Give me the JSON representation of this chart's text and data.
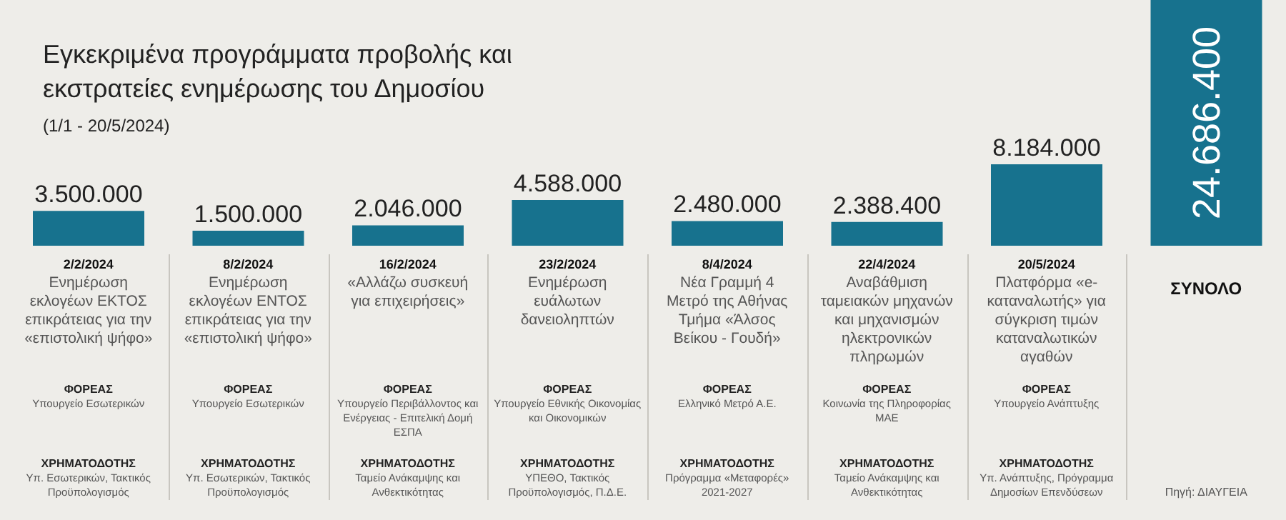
{
  "chart_data": {
    "type": "bar",
    "title": "Εγκεκριμένα προγράμματα προβολής και εκστρατείες ενημέρωσης του Δημοσίου",
    "subtitle": "(1/1 - 20/5/2024)",
    "categories": [
      "2/2/2024",
      "8/2/2024",
      "16/2/2024",
      "23/2/2024",
      "8/4/2024",
      "22/4/2024",
      "20/5/2024",
      "ΣΥΝΟΛΟ"
    ],
    "values": [
      3500000,
      1500000,
      2046000,
      4588000,
      2480000,
      2388400,
      8184000,
      24686400
    ],
    "value_labels": [
      "3.500.000",
      "1.500.000",
      "2.046.000",
      "4.588.000",
      "2.480.000",
      "2.388.400",
      "8.184.000",
      "24.686.400"
    ],
    "color": "#17728e",
    "annotations": [
      "Ενημέρωση εκλογέων ΕΚΤΟΣ επικράτειας για την «επιστολική ψήφο»",
      "ΦΟΡΕΑΣ",
      "Υπουργείο Εσωτερικών",
      "ΧΡΗΜΑΤΟΔΟΤΗΣ",
      "Υπ. Εσωτερικών, Τακτικός Προϋπολογισμός",
      "Ενημέρωση εκλογέων ΕΝΤΟΣ επικράτειας για την «επιστολική ψήφο»",
      "ΦΟΡΕΑΣ",
      "Υπουργείο Εσωτερικών",
      "ΧΡΗΜΑΤΟΔΟΤΗΣ",
      "Υπ. Εσωτερικών, Τακτικός Προϋπολογισμός",
      "«Αλλάζω συσκευή για επιχειρήσεις»",
      "ΦΟΡΕΑΣ",
      "Υπουργείο Περιβάλλοντος και Ενέργειας - Επιτελική Δομή ΕΣΠΑ",
      "ΧΡΗΜΑΤΟΔΟΤΗΣ",
      "Ταμείο Ανάκαμψης και Ανθεκτικότητας",
      "Ενημέρωση ευάλωτων δανειοληπτών",
      "ΦΟΡΕΑΣ",
      "Υπουργείο Εθνικής Οικονομίας και Οικονομικών",
      "ΧΡΗΜΑΤΟΔΟΤΗΣ",
      "ΥΠΕΘΟ, Τακτικός Προϋπολογισμός, Π.Δ.Ε.",
      "Νέα Γραμμή 4 Μετρό της Αθήνας Τμήμα «Άλσος Βείκου - Γουδή»",
      "ΦΟΡΕΑΣ",
      "Ελληνικό Μετρό Α.Ε.",
      "ΧΡΗΜΑΤΟΔΟΤΗΣ",
      "Πρόγραμμα «Μεταφορές» 2021-2027",
      "Αναβάθμιση ταμειακών μηχανών και μηχανισμών ηλεκτρονικών πληρωμών",
      "ΦΟΡΕΑΣ",
      "Κοινωνία της Πληροφορίας ΜΑΕ",
      "ΧΡΗΜΑΤΟΔΟΤΗΣ",
      "Ταμείο Ανάκαμψης και Ανθεκτικότητας",
      "Πλατφόρμα «e-καταναλωτής» για σύγκριση τιμών καταναλωτικών αγαθών",
      "ΦΟΡΕΑΣ",
      "Υπουργείο Ανάπτυξης",
      "ΧΡΗΜΑΤΟΔΟΤΗΣ",
      "Υπ. Ανάπτυξης, Πρόγραμμα Δημοσίων Επενδύσεων",
      "Πηγή: ΔΙΑΥΓΕΙΑ"
    ]
  }
}
